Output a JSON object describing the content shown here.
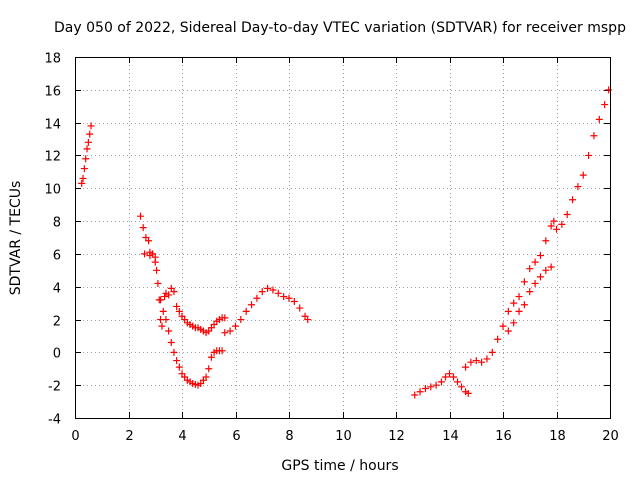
{
  "chart_data": {
    "type": "scatter",
    "title": "Day 050 of 2022, Sidereal Day-to-day VTEC variation (SDTVAR) for receiver mspp",
    "xlabel": "GPS time / hours",
    "ylabel": "SDTVAR / TECUs",
    "xlim": [
      0,
      20
    ],
    "ylim": [
      -4,
      18
    ],
    "xticks": [
      "0",
      "2",
      "4",
      "6",
      "8",
      "10",
      "12",
      "14",
      "16",
      "18",
      "20"
    ],
    "yticks": [
      "-4",
      "-2",
      "0",
      "2",
      "4",
      "6",
      "8",
      "10",
      "12",
      "14",
      "16",
      "18"
    ],
    "grid": true,
    "marker": "plus",
    "color": "#ff0000",
    "series": [
      {
        "name": "seg1",
        "x": [
          0.25,
          0.3,
          0.35,
          0.4,
          0.45,
          0.5,
          0.55,
          0.6
        ],
        "y": [
          10.3,
          10.6,
          11.2,
          11.8,
          12.4,
          12.8,
          13.3,
          13.8
        ]
      },
      {
        "name": "seg2",
        "x": [
          2.45,
          2.55,
          2.65,
          2.75,
          2.8,
          2.9,
          3.0,
          3.05,
          3.1,
          3.15,
          3.2,
          3.25,
          3.3,
          3.35,
          3.4,
          3.5,
          3.6,
          3.7,
          3.8,
          3.9,
          4.0,
          4.1,
          4.2,
          4.3,
          4.4,
          4.5,
          4.6,
          4.7,
          4.8,
          4.9,
          5.0,
          5.1,
          5.2,
          5.3,
          5.4,
          5.5,
          5.6
        ],
        "y": [
          8.3,
          7.6,
          7.0,
          6.8,
          6.1,
          6.0,
          5.8,
          5.0,
          4.2,
          3.2,
          2.0,
          1.6,
          2.5,
          3.4,
          3.6,
          3.5,
          3.9,
          3.7,
          2.8,
          2.5,
          2.2,
          2.0,
          1.8,
          1.7,
          1.6,
          1.5,
          1.5,
          1.4,
          1.3,
          1.2,
          1.3,
          1.5,
          1.7,
          1.9,
          2.0,
          2.1,
          2.1
        ]
      },
      {
        "name": "seg3",
        "x": [
          2.6,
          2.8,
          3.0,
          3.2,
          3.4,
          3.5,
          3.6,
          3.7,
          3.8,
          3.9,
          4.0,
          4.1,
          4.2,
          4.3,
          4.4,
          4.5,
          4.6,
          4.7,
          4.8,
          4.9,
          5.0,
          5.1,
          5.2,
          5.3,
          5.4,
          5.5
        ],
        "y": [
          6.0,
          5.9,
          5.5,
          3.2,
          2.0,
          1.3,
          0.6,
          0.0,
          -0.5,
          -0.9,
          -1.3,
          -1.5,
          -1.7,
          -1.8,
          -1.9,
          -1.95,
          -2.0,
          -1.9,
          -1.7,
          -1.5,
          -1.0,
          -0.3,
          0.0,
          0.1,
          0.1,
          0.1
        ]
      },
      {
        "name": "seg4",
        "x": [
          5.6,
          5.8,
          6.0,
          6.2,
          6.4,
          6.6,
          6.8,
          7.0,
          7.2,
          7.4,
          7.6,
          7.8,
          8.0,
          8.2,
          8.4,
          8.6,
          8.7
        ],
        "y": [
          1.2,
          1.3,
          1.6,
          2.0,
          2.5,
          2.9,
          3.3,
          3.7,
          3.9,
          3.8,
          3.6,
          3.4,
          3.3,
          3.1,
          2.7,
          2.2,
          2.0
        ]
      },
      {
        "name": "seg5",
        "x": [
          12.7,
          12.9,
          13.1,
          13.3,
          13.5,
          13.7,
          13.85,
          14.0,
          14.15,
          14.3,
          14.45,
          14.6,
          14.7
        ],
        "y": [
          -2.6,
          -2.4,
          -2.2,
          -2.1,
          -2.0,
          -1.8,
          -1.5,
          -1.3,
          -1.5,
          -1.8,
          -2.1,
          -2.4,
          -2.5
        ]
      },
      {
        "name": "seg6",
        "x": [
          14.6,
          14.8,
          15.0,
          15.2,
          15.4,
          15.6,
          15.8,
          16.0,
          16.2,
          16.4,
          16.6,
          16.8,
          17.0,
          17.2,
          17.4,
          17.6,
          17.8,
          17.9
        ],
        "y": [
          -0.9,
          -0.6,
          -0.5,
          -0.6,
          -0.4,
          0.0,
          0.8,
          1.6,
          2.5,
          3.0,
          3.4,
          4.3,
          5.1,
          5.5,
          5.9,
          6.8,
          7.7,
          8.0
        ]
      },
      {
        "name": "seg7",
        "x": [
          16.2,
          16.4,
          16.6,
          16.8,
          17.0,
          17.2,
          17.4,
          17.6,
          17.8,
          18.0,
          18.2,
          18.4,
          18.6,
          18.8,
          19.0,
          19.2,
          19.4,
          19.6,
          19.8,
          19.95
        ],
        "y": [
          1.3,
          1.8,
          2.5,
          2.9,
          3.7,
          4.2,
          4.6,
          5.0,
          5.2,
          7.5,
          7.8,
          8.4,
          9.3,
          10.1,
          10.8,
          12.0,
          13.2,
          14.2,
          15.1,
          16.0
        ]
      }
    ]
  }
}
